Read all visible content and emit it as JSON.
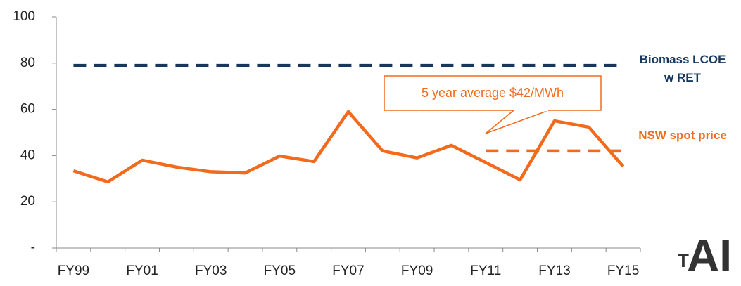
{
  "chart_data": {
    "type": "line",
    "categories": [
      "FY99",
      null,
      "FY01",
      null,
      "FY03",
      null,
      "FY05",
      null,
      "FY07",
      null,
      "FY09",
      null,
      "FY11",
      null,
      "FY13",
      null,
      "FY15"
    ],
    "series": [
      {
        "name": "Biomass LCOE w RET",
        "color": "#17375e",
        "dashed": true,
        "values": [
          79,
          79,
          79,
          79,
          79,
          79,
          79,
          79,
          79,
          79,
          79,
          79,
          79,
          79,
          79,
          79,
          79
        ]
      },
      {
        "name": "NSW spot price",
        "color": "#f26b1d",
        "dashed": false,
        "values": [
          33.4,
          28.6,
          38,
          35,
          33,
          32.5,
          39.8,
          37.4,
          59,
          42,
          39,
          44.4,
          37,
          29.5,
          55,
          52.3,
          35.3
        ]
      },
      {
        "name": "5 year average $42/MWh",
        "color": "#f26b1d",
        "dashed": true,
        "values": [
          null,
          null,
          null,
          null,
          null,
          null,
          null,
          null,
          null,
          null,
          null,
          null,
          42,
          42,
          42,
          42,
          42
        ]
      }
    ],
    "ylim": [
      0,
      100
    ],
    "yticks": [
      {
        "value": 0,
        "label": "-"
      },
      20,
      40,
      60,
      80,
      100
    ],
    "grid": false
  },
  "logo": {
    "small": "T",
    "large": "AI"
  }
}
